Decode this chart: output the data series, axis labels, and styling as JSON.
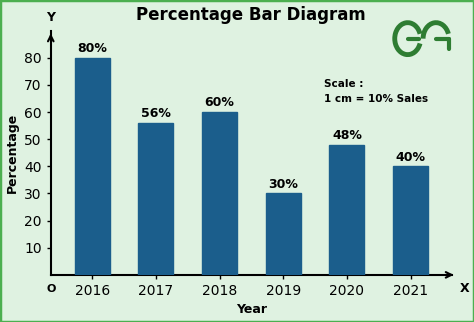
{
  "title": "Percentage Bar Diagram",
  "categories": [
    "2016",
    "2017",
    "2018",
    "2019",
    "2020",
    "2021"
  ],
  "values": [
    80,
    56,
    60,
    30,
    48,
    40
  ],
  "bar_color": "#1b5e8c",
  "background_color": "#dff2e1",
  "bar_edge_color": "#1b5e8c",
  "ylabel": "Percentage",
  "xlabel": "Year",
  "yticks": [
    10,
    20,
    30,
    40,
    50,
    60,
    70,
    80
  ],
  "ylim": [
    0,
    90
  ],
  "scale_text": "Scale :\n1 cm = 10% Sales",
  "title_fontsize": 12,
  "label_fontsize": 9,
  "tick_fontsize": 8,
  "bar_label_fontsize": 9,
  "origin_label": "O",
  "x_axis_label": "X",
  "y_axis_label": "Y",
  "logo_color": "#2e7d32",
  "border_color": "#4caf50"
}
